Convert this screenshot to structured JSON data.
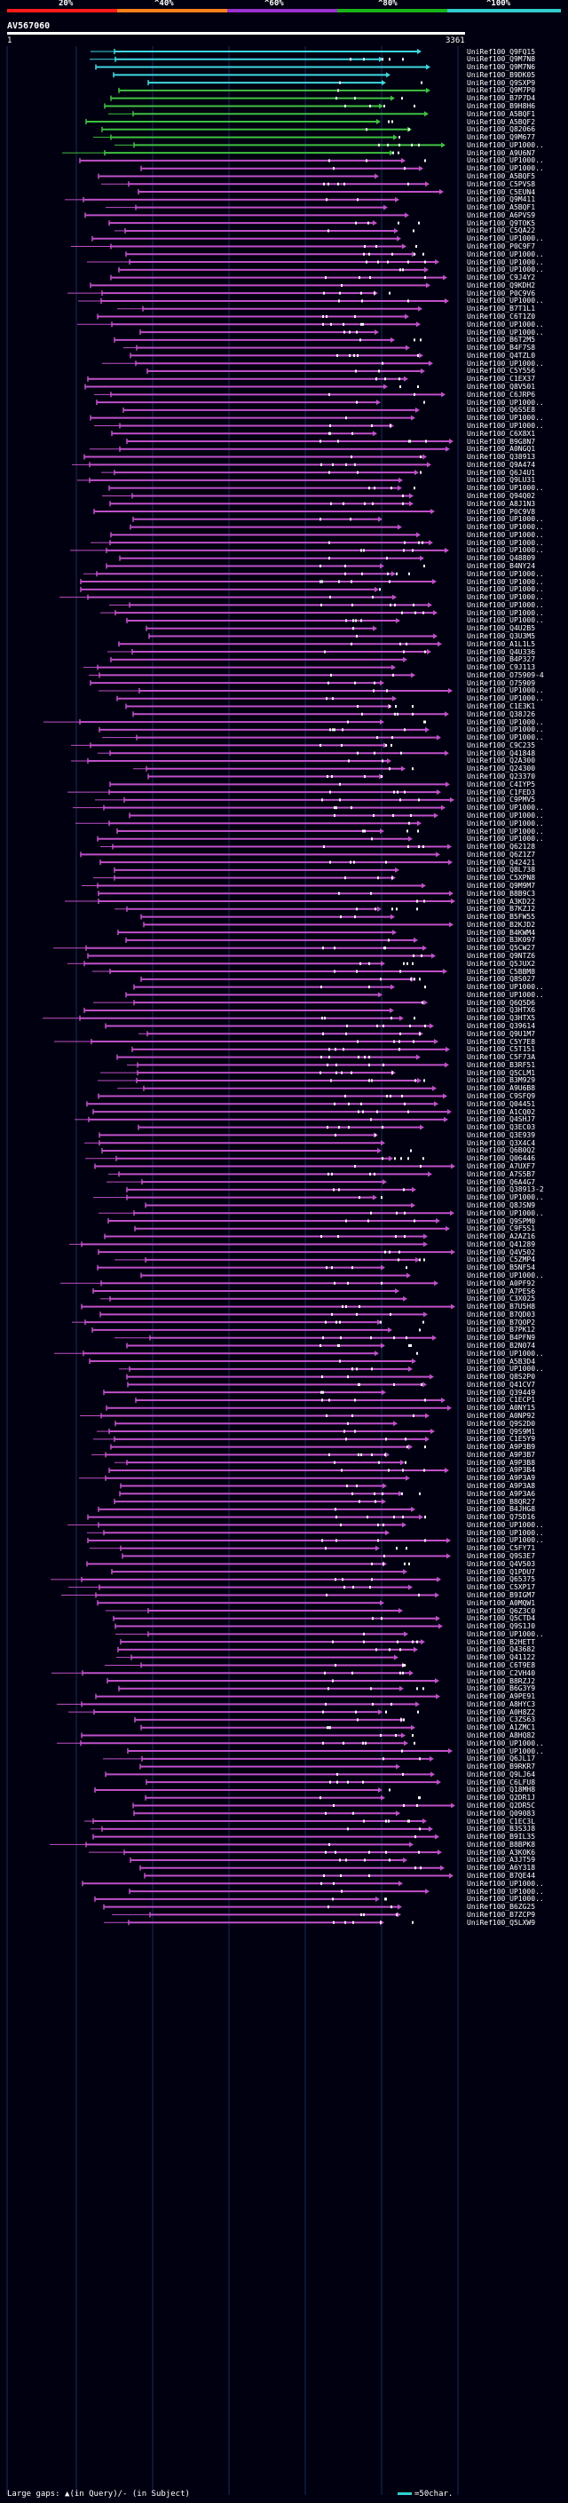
{
  "scale": {
    "ticks": [
      "20%",
      "^40%",
      "^60%",
      "^80%",
      "^100%"
    ],
    "colors": [
      "#ff1a1a",
      "#ff7f1a",
      "#9933cc",
      "#1ab31a",
      "#33cccc"
    ]
  },
  "query": {
    "name": "AV567060",
    "start": "1",
    "end": "3361"
  },
  "hit_colors": {
    "cyan": "#40d8e0",
    "green": "#40c040",
    "magenta": "#c050c8",
    "gap_mark": "#ffffff"
  },
  "labels": [
    "UniRef100_Q9FQ15",
    "UniRef100_Q9M7N8",
    "UniRef100_Q9M7N6",
    "UniRef100_B9DK05",
    "UniRef100_Q9SXP9",
    "UniRef100_Q9M7P0",
    "UniRef100_B7P7D4",
    "UniRef100_B9H8H6",
    "UniRef100_A5BQF1",
    "UniRef100_A5BQF2",
    "UniRef100_Q82066",
    "UniRef100_Q9M677",
    "UniRef100_UP1000..",
    "UniRef100_A9U6N7",
    "UniRef100_UP1000..",
    "UniRef100_UP1000..",
    "UniRef100_A5BQF5",
    "UniRef100_C5PVS8",
    "UniRef100_C5EUN4",
    "UniRef100_Q9M411",
    "UniRef100_A5BQF1",
    "UniRef100_A6PVS9",
    "UniRef100_Q9TOK5",
    "UniRef100_C5QA22",
    "UniRef100_UP1000..",
    "UniRef100_P0C9F7",
    "UniRef100_UP1000..",
    "UniRef100_UP1000..",
    "UniRef100_UP1000..",
    "UniRef100_C9J4Y2",
    "UniRef100_Q9KDH2",
    "UniRef100_P0C9V6",
    "UniRef100_UP1000..",
    "UniRef100_B7T1L1",
    "UniRef100_C6T1Z0",
    "UniRef100_UP1000..",
    "UniRef100_UP1000..",
    "UniRef100_B6T2M5",
    "UniRef100_B4F7S8",
    "UniRef100_Q4TZL0",
    "UniRef100_UP1000..",
    "UniRef100_C5Y556",
    "UniRef100_C1EX37",
    "UniRef100_Q8V501",
    "UniRef100_C6JRP6",
    "UniRef100_UP1000..",
    "UniRef100_Q6S5E8",
    "UniRef100_UP1000..",
    "UniRef100_UP1000..",
    "UniRef100_C6X8X1",
    "UniRef100_B9G8N7",
    "UniRef100_A0NGQ1",
    "UniRef100_Q38913",
    "UniRef100_Q9A474",
    "UniRef100_Q6J4U1",
    "UniRef100_Q9LU31",
    "UniRef100_UP1000..",
    "UniRef100_Q94Q02",
    "UniRef100_A8J1N3",
    "UniRef100_P0C9V8",
    "UniRef100_UP1000..",
    "UniRef100_UP1000..",
    "UniRef100_UP1000..",
    "UniRef100_UP1000..",
    "UniRef100_UP1000..",
    "UniRef100_Q48809",
    "UniRef100_B4NY24",
    "UniRef100_UP1000..",
    "UniRef100_UP1000..",
    "UniRef100_UP1000..",
    "UniRef100_UP1000..",
    "UniRef100_UP1000..",
    "UniRef100_UP1000..",
    "UniRef100_UP1000..",
    "UniRef100_Q4U2B5",
    "UniRef100_Q3U3M5",
    "UniRef100_A1L1L5",
    "UniRef100_Q4U336",
    "UniRef100_B4P327",
    "UniRef100_C9J113",
    "UniRef100_O75909-4",
    "UniRef100_O75909",
    "UniRef100_UP1000..",
    "UniRef100_UP1000..",
    "UniRef100_C1E3K1",
    "UniRef100_Q38J26",
    "UniRef100_UP1000..",
    "UniRef100_UP1000..",
    "UniRef100_UP1000..",
    "UniRef100_C9C235",
    "UniRef100_Q41848",
    "UniRef100_Q2A300",
    "UniRef100_Q24300",
    "UniRef100_Q23370",
    "UniRef100_C4IYP5",
    "UniRef100_C1FED3",
    "UniRef100_C9PMV5",
    "UniRef100_UP1000..",
    "UniRef100_UP1000..",
    "UniRef100_UP1000..",
    "UniRef100_UP1000..",
    "UniRef100_UP1000..",
    "UniRef100_Q62128",
    "UniRef100_Q6Z1Z7",
    "UniRef100_Q42421",
    "UniRef100_Q8L738",
    "UniRef100_C5XPN8",
    "UniRef100_Q9M9M7",
    "UniRef100_B8B9C3",
    "UniRef100_A3KD22",
    "UniRef100_B7KZJ2",
    "UniRef100_B5FW55",
    "UniRef100_B2KJD2",
    "UniRef100_B4KWM4",
    "UniRef100_B3K097",
    "UniRef100_Q5CW27",
    "UniRef100_Q9NTZ6",
    "UniRef100_Q5JUX2",
    "UniRef100_C5BBM8",
    "UniRef100_Q8S027",
    "UniRef100_UP1000..",
    "UniRef100_UP1000..",
    "UniRef100_Q6Q5D6",
    "UniRef100_Q3HTX6",
    "UniRef100_Q3HTX5",
    "UniRef100_Q39614",
    "UniRef100_Q9U1M7",
    "UniRef100_C5Y7E8",
    "UniRef100_C5T151",
    "UniRef100_C5F73A",
    "UniRef100_B3RF51",
    "UniRef100_Q5CLM1",
    "UniRef100_B3M929",
    "UniRef100_A9U6B8",
    "UniRef100_C9SFQ9",
    "UniRef100_Q04451",
    "UniRef100_A1CQ02",
    "UniRef100_Q4SHJ7",
    "UniRef100_Q3EC03",
    "UniRef100_Q3E939",
    "UniRef100_Q3X4C4",
    "UniRef100_Q6B0Q2",
    "UniRef100_Q06446",
    "UniRef100_A7UXF7",
    "UniRef100_A7S5B7",
    "UniRef100_Q6A4G7",
    "UniRef100_Q38913-2",
    "UniRef100_UP1000..",
    "UniRef100_Q8JSN9",
    "UniRef100_UP1000..",
    "UniRef100_Q9SPM0",
    "UniRef100_C9F5S1",
    "UniRef100_A2AZ16",
    "UniRef100_Q41289",
    "UniRef100_Q4V502",
    "UniRef100_C5ZMP4",
    "UniRef100_B5NF54",
    "UniRef100_UP1000..",
    "UniRef100_A0PF92",
    "UniRef100_A7PES6",
    "UniRef100_C3X025",
    "UniRef100_B7U5H8",
    "UniRef100_B7QD03",
    "UniRef100_B7QOP2",
    "UniRef100_B7PK12",
    "UniRef100_B4PFN9",
    "UniRef100_B2N074",
    "UniRef100_UP1000..",
    "UniRef100_A5B3D4",
    "UniRef100_UP1000..",
    "UniRef100_Q8S2P0",
    "UniRef100_Q41CV7",
    "UniRef100_Q39449",
    "UniRef100_C1ECP1",
    "UniRef100_A0NY15",
    "UniRef100_A0NP92",
    "UniRef100_Q9S2D0",
    "UniRef100_Q9S9M1",
    "UniRef100_C1E5Y9",
    "UniRef100_A9P3B9",
    "UniRef100_A9P3B7",
    "UniRef100_A9P3B8",
    "UniRef100_A9P3B4",
    "UniRef100_A9P3A9",
    "UniRef100_A9P3A8",
    "UniRef100_A9P3A6",
    "UniRef100_B8QR27",
    "UniRef100_B4JHG8",
    "UniRef100_Q75D16",
    "UniRef100_UP1000..",
    "UniRef100_UP1000..",
    "UniRef100_UP1000..",
    "UniRef100_C5FY71",
    "UniRef100_Q9S3E7",
    "UniRef100_Q4V503",
    "UniRef100_Q1PDU7",
    "UniRef100_Q65375",
    "UniRef100_C5XP17",
    "UniRef100_B9IGM7",
    "UniRef100_A0MQW1",
    "UniRef100_Q6Z3C0",
    "UniRef100_Q5CTD4",
    "UniRef100_Q9S1J0",
    "UniRef100_UP1000..",
    "UniRef100_B2HETT",
    "UniRef100_Q43682",
    "UniRef100_Q41122",
    "UniRef100_C6T9E8",
    "UniRef100_C2VH40",
    "UniRef100_B8RZJ2",
    "UniRef100_B6G3Y9",
    "UniRef100_A9PE91",
    "UniRef100_A8HYC3",
    "UniRef100_A0H8Z2",
    "UniRef100_C3ZS63",
    "UniRef100_A1ZMC1",
    "UniRef100_A8HQ82",
    "UniRef100_UP1000..",
    "UniRef100_UP1000..",
    "UniRef100_Q6JL17",
    "UniRef100_B9RKR7",
    "UniRef100_Q9LJ64",
    "UniRef100_C6LFU8",
    "UniRef100_Q18MH8",
    "UniRef100_Q2DR1J",
    "UniRef100_Q2DR5C",
    "UniRef100_Q09083",
    "UniRef100_C1EC3L",
    "UniRef100_B3S3J8",
    "UniRef100_B9IL35",
    "UniRef100_B8BPK8",
    "UniRef100_A3KOK6",
    "UniRef100_A3JT59",
    "UniRef100_A6Y318",
    "UniRef100_B7QE44",
    "UniRef100_UP1000..",
    "UniRef100_UP1000..",
    "UniRef100_UP1000..",
    "UniRef100_B6ZG25",
    "UniRef100_B7ZCP9",
    "UniRef100_Q5LXW9"
  ],
  "legend": {
    "text": "Large gaps: ▲(in Query)/- (in Subject)",
    "scale_note": "=50char."
  }
}
